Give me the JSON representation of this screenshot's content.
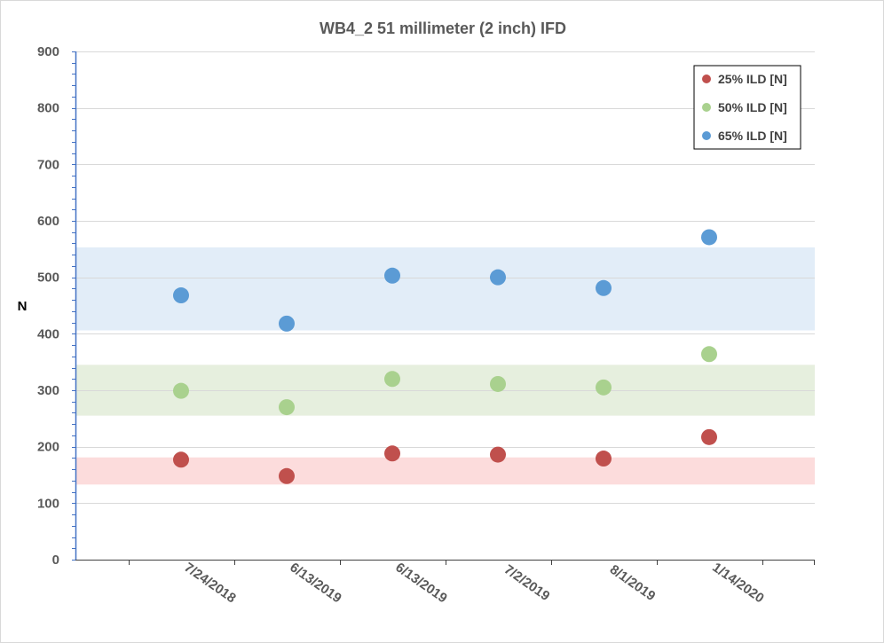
{
  "chart_data": {
    "type": "scatter",
    "title": "WB4_2 51 millimeter (2 inch) IFD",
    "xlabel": "",
    "ylabel": "N",
    "ylim": [
      0,
      900
    ],
    "yticks": [
      "0",
      "100",
      "200",
      "300",
      "400",
      "500",
      "600",
      "700",
      "800",
      "900"
    ],
    "categories": [
      "7/24/2018",
      "6/13/2019",
      "6/13/2019",
      "7/2/2019",
      "8/1/2019",
      "1/14/2020"
    ],
    "grid": true,
    "legend_position": "top-right",
    "series": [
      {
        "name": "25% ILD [N]",
        "color": "#c0504d",
        "values": [
          177,
          148,
          188,
          186,
          179,
          217
        ]
      },
      {
        "name": "50% ILD [N]",
        "color": "#a9d18e",
        "values": [
          299,
          270,
          320,
          311,
          305,
          364
        ]
      },
      {
        "name": "65% ILD [N]",
        "color": "#5b9bd5",
        "values": [
          468,
          418,
          503,
          500,
          481,
          571
        ]
      }
    ],
    "bands": [
      {
        "series": "25% ILD [N]",
        "range": [
          133,
          181
        ],
        "color": "#fcdcdc"
      },
      {
        "series": "50% ILD [N]",
        "range": [
          255,
          345
        ],
        "color": "#e6efde"
      },
      {
        "series": "65% ILD [N]",
        "range": [
          406,
          553
        ],
        "color": "#e2edf8"
      }
    ]
  }
}
